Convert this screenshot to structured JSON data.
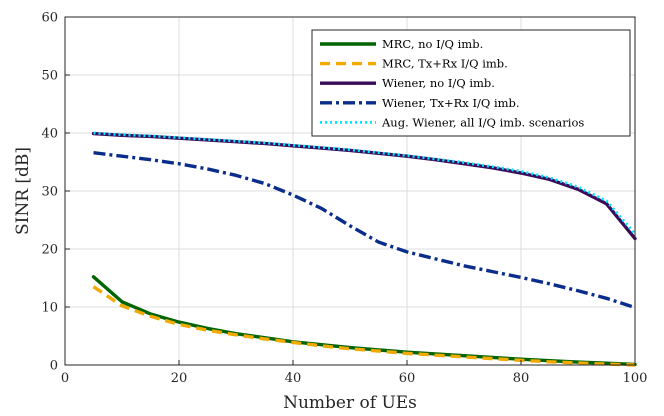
{
  "chart_data": {
    "type": "line",
    "title": "",
    "xlabel": "Number of UEs",
    "ylabel": "SINR [dB]",
    "xlim": [
      0,
      100
    ],
    "ylim": [
      0,
      60
    ],
    "xticks": [
      0,
      20,
      40,
      60,
      80,
      100
    ],
    "yticks": [
      0,
      10,
      20,
      30,
      40,
      50,
      60
    ],
    "xtick_labels": [
      "0",
      "20",
      "40",
      "60",
      "80",
      "100"
    ],
    "ytick_labels": [
      "0",
      "10",
      "20",
      "30",
      "40",
      "50",
      "60"
    ],
    "grid": true,
    "legend_position": "top-right",
    "series": [
      {
        "name": "MRC, no I/Q imb.",
        "color": "#006400",
        "style": "solid",
        "x": [
          5,
          10,
          15,
          20,
          25,
          30,
          35,
          40,
          45,
          50,
          55,
          60,
          65,
          70,
          75,
          80,
          85,
          90,
          95,
          100
        ],
        "y": [
          15.2,
          10.9,
          8.8,
          7.4,
          6.3,
          5.4,
          4.7,
          4.0,
          3.5,
          3.0,
          2.6,
          2.2,
          1.9,
          1.6,
          1.3,
          1.0,
          0.75,
          0.5,
          0.3,
          0.1
        ]
      },
      {
        "name": "MRC, Tx+Rx I/Q imb.",
        "color": "#f2a900",
        "style": "dashed",
        "x": [
          5,
          10,
          15,
          20,
          25,
          30,
          35,
          40,
          45,
          50,
          55,
          60,
          65,
          70,
          75,
          80,
          85,
          90,
          95,
          100
        ],
        "y": [
          13.5,
          10.2,
          8.4,
          7.0,
          6.0,
          5.2,
          4.5,
          3.9,
          3.3,
          2.8,
          2.4,
          2.0,
          1.7,
          1.4,
          1.1,
          0.8,
          0.55,
          0.35,
          0.15,
          0.0
        ]
      },
      {
        "name": "Wiener, no I/Q imb.",
        "color": "#3b0a5a",
        "style": "solid",
        "x": [
          5,
          10,
          15,
          20,
          25,
          30,
          35,
          40,
          45,
          50,
          55,
          60,
          65,
          70,
          75,
          80,
          85,
          90,
          95,
          100
        ],
        "y": [
          39.9,
          39.6,
          39.4,
          39.1,
          38.8,
          38.5,
          38.2,
          37.8,
          37.4,
          37.0,
          36.5,
          36.0,
          35.4,
          34.7,
          34.0,
          33.1,
          32.0,
          30.3,
          27.8,
          21.8
        ]
      },
      {
        "name": "Wiener, Tx+Rx I/Q imb.",
        "color": "#0a2d8c",
        "style": "dashdot",
        "x": [
          5,
          10,
          15,
          20,
          25,
          30,
          35,
          40,
          45,
          50,
          55,
          60,
          65,
          70,
          75,
          80,
          85,
          90,
          95,
          100
        ],
        "y": [
          36.6,
          36.0,
          35.4,
          34.7,
          33.8,
          32.7,
          31.3,
          29.3,
          27.0,
          24.0,
          21.2,
          19.5,
          18.3,
          17.1,
          16.1,
          15.1,
          14.0,
          12.8,
          11.5,
          9.9
        ]
      },
      {
        "name": "Aug. Wiener, all I/Q imb. scenarios",
        "color": "#00e6ff",
        "style": "dotted",
        "x": [
          5,
          10,
          15,
          20,
          25,
          30,
          35,
          40,
          45,
          50,
          55,
          60,
          65,
          70,
          75,
          80,
          85,
          90,
          95,
          100
        ],
        "y": [
          40.0,
          39.7,
          39.5,
          39.2,
          38.9,
          38.6,
          38.3,
          37.9,
          37.5,
          37.1,
          36.6,
          36.1,
          35.5,
          34.9,
          34.2,
          33.4,
          32.3,
          30.7,
          28.3,
          22.6
        ]
      }
    ]
  }
}
